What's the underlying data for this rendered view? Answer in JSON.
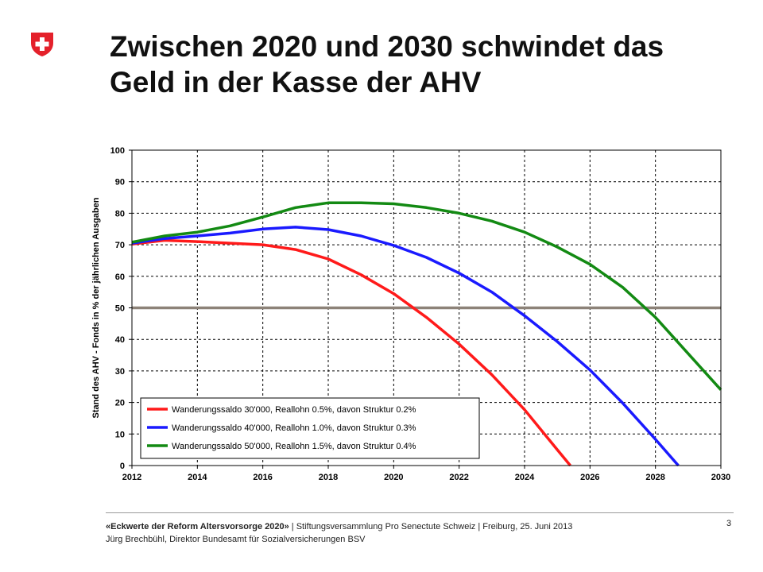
{
  "slide": {
    "title_line1": "Zwischen 2020 und 2030 schwindet das",
    "title_line2": "Geld in der Kasse der AHV",
    "page_number": "3"
  },
  "footer": {
    "event_bold": "«Eckwerte der Reform Altersvorsorge 2020»",
    "event_rest": " | Stiftungsversammlung Pro Senectute Schweiz | Freiburg, 25. Juni 2013",
    "author": "Jürg Brechbühl, Direktor Bundesamt für Sozialversicherungen BSV"
  },
  "colors": {
    "swiss_red": "#e4212b",
    "red_series": "#ff1a1a",
    "blue_series": "#1a1aff",
    "green_series": "#138a13",
    "threshold": "#8c8278"
  },
  "chart_data": {
    "type": "line",
    "ylabel": "Stand des AHV - Fonds in % der jährlichen Ausgaben",
    "xlabel": "",
    "xlim": [
      2012,
      2030
    ],
    "ylim": [
      0,
      100
    ],
    "x_ticks": [
      2012,
      2014,
      2016,
      2018,
      2020,
      2022,
      2024,
      2026,
      2028,
      2030
    ],
    "y_ticks": [
      0,
      10,
      20,
      30,
      40,
      50,
      60,
      70,
      80,
      90,
      100
    ],
    "grid": "dashed vertical and horizontal",
    "legend_position": "bottom-left",
    "reference_line": 50,
    "series": [
      {
        "name": "Wanderungssaldo 30'000, Reallohn 0.5%, davon Struktur 0.2%",
        "color": "#ff1a1a",
        "x": [
          2012,
          2013,
          2014,
          2015,
          2016,
          2017,
          2018,
          2019,
          2020,
          2021,
          2022,
          2023,
          2024,
          2025,
          2025.4
        ],
        "y": [
          70.2,
          71.4,
          71.0,
          70.5,
          70.0,
          68.5,
          65.5,
          60.5,
          54.5,
          47.0,
          38.5,
          28.8,
          17.7,
          5.0,
          0
        ]
      },
      {
        "name": "Wanderungssaldo 40'000, Reallohn 1.0%, davon Struktur 0.3%",
        "color": "#1a1aff",
        "x": [
          2012,
          2013,
          2014,
          2015,
          2016,
          2017,
          2018,
          2019,
          2020,
          2021,
          2022,
          2023,
          2024,
          2025,
          2026,
          2027,
          2028,
          2028.7
        ],
        "y": [
          70.5,
          72.0,
          72.8,
          73.7,
          75.0,
          75.6,
          74.8,
          72.8,
          69.8,
          66.0,
          61.0,
          55.0,
          47.5,
          39.3,
          30.3,
          19.8,
          8.3,
          0
        ]
      },
      {
        "name": "Wanderungssaldo 50'000, Reallohn 1.5%, davon Struktur 0.4%",
        "color": "#138a13",
        "x": [
          2012,
          2013,
          2014,
          2015,
          2016,
          2017,
          2018,
          2019,
          2020,
          2021,
          2022,
          2023,
          2024,
          2025,
          2026,
          2027,
          2028,
          2029,
          2030
        ],
        "y": [
          70.8,
          72.8,
          74.0,
          76.0,
          78.8,
          81.8,
          83.3,
          83.3,
          83.0,
          81.8,
          80.0,
          77.5,
          74.0,
          69.3,
          63.8,
          56.5,
          47.0,
          35.5,
          24.0
        ]
      }
    ]
  }
}
